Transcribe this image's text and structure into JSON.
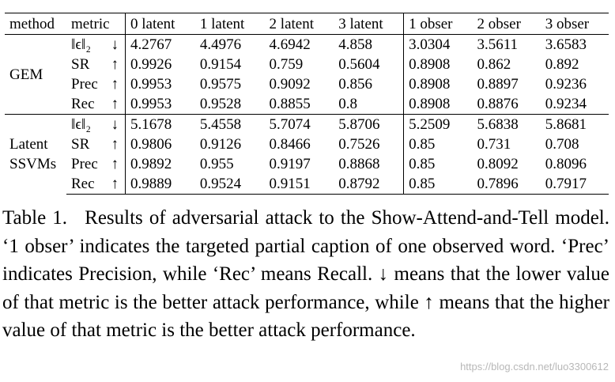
{
  "table": {
    "headers": [
      "method",
      "metric",
      "0 latent",
      "1 latent",
      "2 latent",
      "3 latent",
      "1 obser",
      "2 obser",
      "3 obser"
    ],
    "groups": [
      {
        "method": "GEM",
        "rows": [
          {
            "metric": "‖ϵ‖₂",
            "arrow": "↓",
            "values": [
              "4.2767",
              "4.4976",
              "4.6942",
              "4.858",
              "3.0304",
              "3.5611",
              "3.6583"
            ]
          },
          {
            "metric": "SR",
            "arrow": "↑",
            "values": [
              "0.9926",
              "0.9154",
              "0.759",
              "0.5604",
              "0.8908",
              "0.862",
              "0.892"
            ]
          },
          {
            "metric": "Prec",
            "arrow": "↑",
            "values": [
              "0.9953",
              "0.9575",
              "0.9092",
              "0.856",
              "0.8908",
              "0.8897",
              "0.9236"
            ]
          },
          {
            "metric": "Rec",
            "arrow": "↑",
            "values": [
              "0.9953",
              "0.9528",
              "0.8855",
              "0.8",
              "0.8908",
              "0.8876",
              "0.9234"
            ]
          }
        ]
      },
      {
        "method": "Latent SSVMs",
        "method_line1": "Latent",
        "method_line2": "SSVMs",
        "rows": [
          {
            "metric": "‖ϵ‖₂",
            "arrow": "↓",
            "values": [
              "5.1678",
              "5.4558",
              "5.7074",
              "5.8706",
              "5.2509",
              "5.6838",
              "5.8681"
            ]
          },
          {
            "metric": "SR",
            "arrow": "↑",
            "values": [
              "0.9806",
              "0.9126",
              "0.8466",
              "0.7526",
              "0.85",
              "0.731",
              "0.708"
            ]
          },
          {
            "metric": "Prec",
            "arrow": "↑",
            "values": [
              "0.9892",
              "0.955",
              "0.9197",
              "0.8868",
              "0.85",
              "0.8092",
              "0.8096"
            ]
          },
          {
            "metric": "Rec",
            "arrow": "↑",
            "values": [
              "0.9889",
              "0.9524",
              "0.9151",
              "0.8792",
              "0.85",
              "0.7896",
              "0.7917"
            ]
          }
        ]
      }
    ]
  },
  "caption": {
    "label": "Table 1.",
    "text": "Results of adversarial attack to the Show-Attend-and-Tell model. ‘1 obser’ indicates the targeted partial caption of one observed word. ‘Prec’ indicates Precision, while ‘Rec’ means Recall. ↓ means that the lower value of that metric is the better attack performance, while ↑ means that the higher value of that metric is the better attack performance."
  },
  "watermark": "https://blog.csdn.net/luo3300612"
}
